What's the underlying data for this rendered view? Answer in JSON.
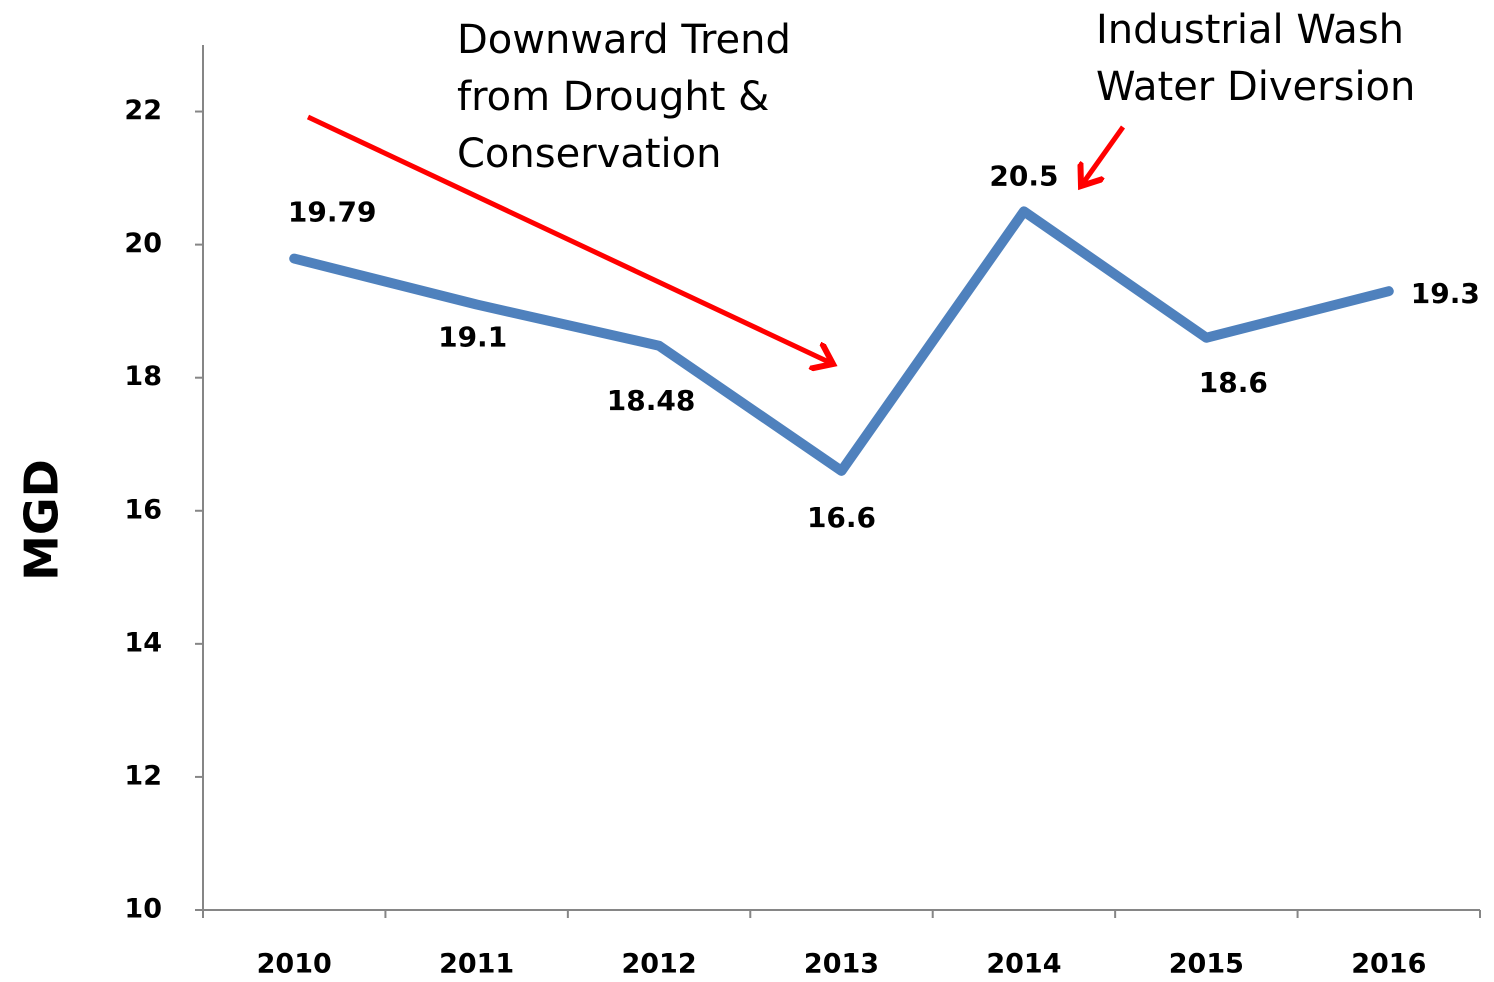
{
  "chart_data": {
    "type": "line",
    "y_label": "MGD",
    "categories": [
      "2010",
      "2011",
      "2012",
      "2013",
      "2014",
      "2015",
      "2016"
    ],
    "series": [
      {
        "name": "MGD",
        "color": "#4f81bd",
        "values": [
          19.79,
          19.1,
          18.48,
          16.6,
          20.5,
          18.6,
          19.3
        ]
      }
    ],
    "ylim": [
      10,
      23
    ],
    "yticks": [
      10,
      12,
      14,
      16,
      18,
      20,
      22
    ],
    "annotations": [
      {
        "lines": [
          "Downward Trend",
          "from Drought &",
          "Conservation"
        ],
        "color": "#ff0000"
      },
      {
        "lines": [
          "Industrial Wash",
          "Water Diversion"
        ],
        "color": "#ff0000"
      }
    ]
  }
}
